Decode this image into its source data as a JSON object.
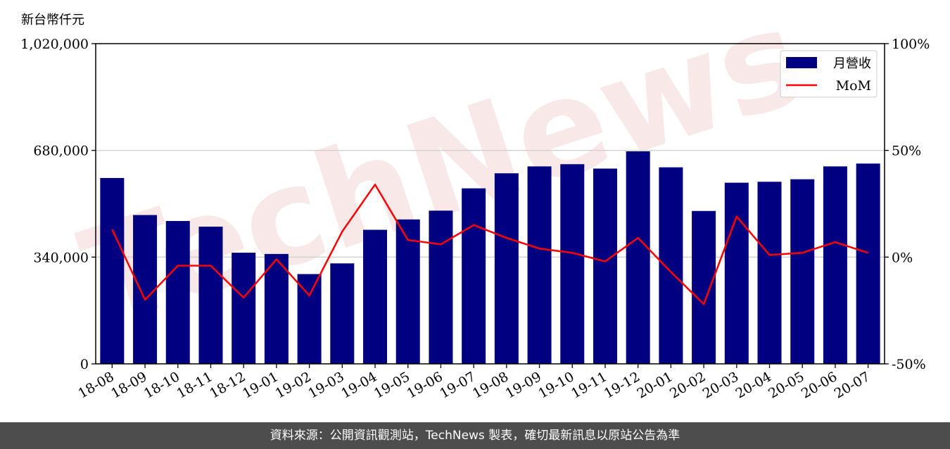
{
  "unit_label": "新台幣仟元",
  "watermark": "TechNews",
  "footer_text": "資料來源：公開資訊觀測站，TechNews 製表，確切最新訊息以原站公告為準",
  "colors": {
    "bar": "#000080",
    "line": "#ff0000",
    "grid": "#d0d0d0",
    "watermark": "#f5dede",
    "footer_bg": "#4d4d4d"
  },
  "chart_data": {
    "type": "bar",
    "categories": [
      "18-08",
      "18-09",
      "18-10",
      "18-11",
      "18-12",
      "19-01",
      "19-02",
      "19-03",
      "19-04",
      "19-05",
      "19-06",
      "19-07",
      "19-08",
      "19-09",
      "19-10",
      "19-11",
      "19-12",
      "20-01",
      "20-02",
      "20-03",
      "20-04",
      "20-05",
      "20-06",
      "20-07"
    ],
    "series": [
      {
        "name": "月營收",
        "type": "bar",
        "axis": "left",
        "values": [
          592000,
          474000,
          455000,
          437000,
          354000,
          350000,
          286000,
          320000,
          427000,
          460000,
          488000,
          559000,
          607000,
          629000,
          636000,
          622000,
          677000,
          626000,
          487000,
          577000,
          580000,
          588000,
          629000,
          638000
        ]
      },
      {
        "name": "MoM",
        "type": "line",
        "axis": "right",
        "values": [
          13,
          -20,
          -4,
          -4,
          -19,
          -1,
          -18,
          12,
          34,
          8,
          6,
          15,
          9,
          4,
          2,
          -2,
          9,
          -7,
          -22,
          19,
          1,
          2,
          7,
          2
        ]
      }
    ],
    "y_left": {
      "ylim": [
        0,
        1020000
      ],
      "ticks": [
        0,
        340000,
        680000,
        1020000
      ],
      "tick_labels": [
        "0",
        "340,000",
        "680,000",
        "1,020,000"
      ]
    },
    "y_right": {
      "ylim": [
        -50,
        100
      ],
      "ticks": [
        -50,
        0,
        50,
        100
      ],
      "tick_labels": [
        "-50%",
        "0%",
        "50%",
        "100%"
      ]
    },
    "grid": "horizontal",
    "legend": {
      "position": "top-right",
      "entries": [
        "月營收",
        "MoM"
      ]
    }
  }
}
